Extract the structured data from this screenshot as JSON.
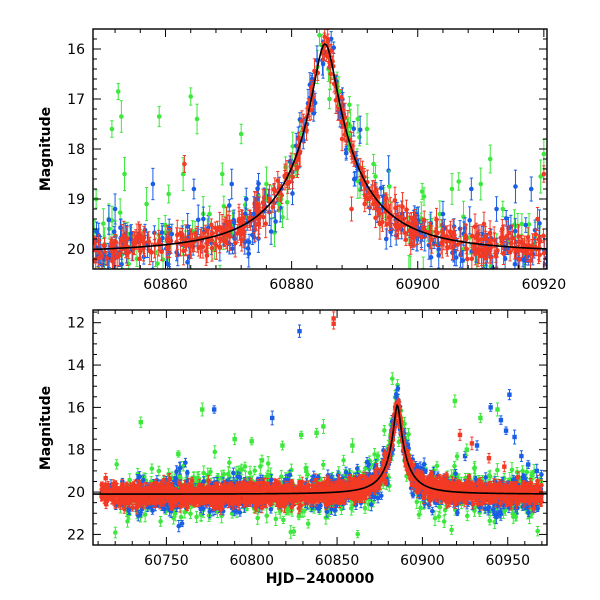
{
  "colors": {
    "g": "#3ce83c",
    "b": "#1a5ee6",
    "r": "#f23a24",
    "model": "#000000"
  },
  "chart_data": [
    {
      "type": "scatter",
      "name": "zoom",
      "xlabel": "",
      "ylabel": "Magnitude",
      "xlim": [
        60848.5,
        60920.5
      ],
      "ylim": [
        20.4,
        15.6
      ],
      "inverted_y": true,
      "xticks": [
        60860,
        60880,
        60900,
        60920
      ],
      "yticks": [
        16,
        17,
        18,
        19,
        20
      ],
      "model_peak": {
        "t0": 60885.3,
        "mag_base": 20.1,
        "mag_peak": 15.9,
        "tau": 1.6
      },
      "series": [
        {
          "name": "green",
          "color_key": "g"
        },
        {
          "name": "blue",
          "color_key": "b"
        },
        {
          "name": "red",
          "color_key": "r"
        }
      ],
      "outliers": [
        {
          "series": "green",
          "points": [
            [
              60849.0,
              19.0
            ],
            [
              60851.5,
              17.6
            ],
            [
              60852.5,
              16.85
            ],
            [
              60853.0,
              17.35
            ],
            [
              60853.5,
              18.5
            ],
            [
              60857.0,
              19.1
            ],
            [
              60859.0,
              17.35
            ],
            [
              60860.5,
              18.9
            ],
            [
              60864.0,
              16.95
            ],
            [
              60865.0,
              17.4
            ],
            [
              60867.0,
              19.3
            ],
            [
              60869.0,
              18.5
            ],
            [
              60872.0,
              17.7
            ],
            [
              60876.0,
              18.7
            ],
            [
              60878.0,
              19.1
            ],
            [
              60886.0,
              17.0
            ],
            [
              60887.5,
              16.85
            ],
            [
              60889.0,
              17.7
            ],
            [
              60890.5,
              17.4
            ],
            [
              60893.0,
              18.3
            ],
            [
              60895.5,
              18.75
            ],
            [
              60901.0,
              18.95
            ],
            [
              60903.5,
              19.3
            ],
            [
              60906.5,
              18.65
            ],
            [
              60910.0,
              18.7
            ],
            [
              60911.5,
              18.2
            ],
            [
              60913.5,
              19.2
            ],
            [
              60916.5,
              19.5
            ],
            [
              60919.5,
              18.55
            ],
            [
              60920.0,
              18.1
            ]
          ]
        },
        {
          "series": "blue",
          "points": [
            [
              60852.0,
              19.2
            ],
            [
              60858.0,
              18.7
            ],
            [
              60861.0,
              19.7
            ],
            [
              60864.5,
              18.8
            ],
            [
              60866.0,
              19.4
            ],
            [
              60870.5,
              18.7
            ],
            [
              60874.0,
              19.3
            ],
            [
              60895.0,
              19.8
            ],
            [
              60904.0,
              19.3
            ],
            [
              60908.5,
              18.8
            ],
            [
              60912.5,
              19.2
            ],
            [
              60915.5,
              18.75
            ],
            [
              60918.0,
              18.8
            ]
          ]
        },
        {
          "series": "red",
          "points": [
            [
              60863.0,
              18.3
            ],
            [
              60886.2,
              16.5
            ],
            [
              60888.0,
              17.8
            ],
            [
              60889.5,
              19.2
            ],
            [
              60892.0,
              19.0
            ],
            [
              60894.0,
              19.5
            ],
            [
              60899.5,
              19.6
            ],
            [
              60910.5,
              19.5
            ],
            [
              60919.0,
              19.4
            ],
            [
              60920.0,
              18.5
            ]
          ]
        }
      ]
    },
    {
      "type": "scatter",
      "name": "full",
      "xlabel": "HJD−2400000",
      "ylabel": "Magnitude",
      "xlim": [
        60707,
        60973
      ],
      "ylim": [
        22.5,
        11.4
      ],
      "inverted_y": true,
      "xticks": [
        60750,
        60800,
        60850,
        60900,
        60950
      ],
      "yticks": [
        12,
        14,
        16,
        18,
        20,
        22
      ],
      "model_peak": {
        "t0": 60885.3,
        "mag_base": 20.1,
        "mag_peak": 15.9,
        "tau": 1.6
      },
      "series": [
        {
          "name": "green",
          "color_key": "g"
        },
        {
          "name": "blue",
          "color_key": "b"
        },
        {
          "name": "red",
          "color_key": "r"
        }
      ],
      "outliers": [
        {
          "series": "red",
          "points": [
            [
              60848.0,
              11.8
            ],
            [
              60848.0,
              12.05
            ]
          ]
        },
        {
          "series": "blue",
          "points": [
            [
              60828.0,
              12.4
            ],
            [
              60778.0,
              16.1
            ],
            [
              60812.0,
              16.5
            ],
            [
              60940.0,
              16.0
            ],
            [
              60946.0,
              16.6
            ],
            [
              60951.0,
              15.4
            ],
            [
              60949.0,
              17.1
            ],
            [
              60954.0,
              17.4
            ],
            [
              60958.0,
              18.3
            ],
            [
              60932.0,
              17.8
            ],
            [
              60925.0,
              18.3
            ],
            [
              60962.0,
              18.7
            ],
            [
              60967.0,
              19.0
            ]
          ]
        },
        {
          "series": "green",
          "points": [
            [
              60735.0,
              16.7
            ],
            [
              60771.0,
              16.1
            ],
            [
              60790.0,
              17.5
            ],
            [
              60800.0,
              17.6
            ],
            [
              60818.0,
              17.8
            ],
            [
              60829.0,
              17.3
            ],
            [
              60838.0,
              17.2
            ],
            [
              60842.0,
              16.9
            ],
            [
              60859.0,
              17.8
            ],
            [
              60919.0,
              15.7
            ],
            [
              60926.0,
              18.0
            ],
            [
              60934.0,
              16.5
            ],
            [
              60944.0,
              16.1
            ],
            [
              60757.0,
              18.2
            ],
            [
              60806.0,
              18.5
            ]
          ]
        },
        {
          "series": "red",
          "points": [
            [
              60922.0,
              17.3
            ],
            [
              60929.0,
              17.7
            ],
            [
              60939.0,
              18.4
            ],
            [
              60948.0,
              18.8
            ],
            [
              60956.0,
              19.3
            ]
          ]
        }
      ]
    }
  ]
}
